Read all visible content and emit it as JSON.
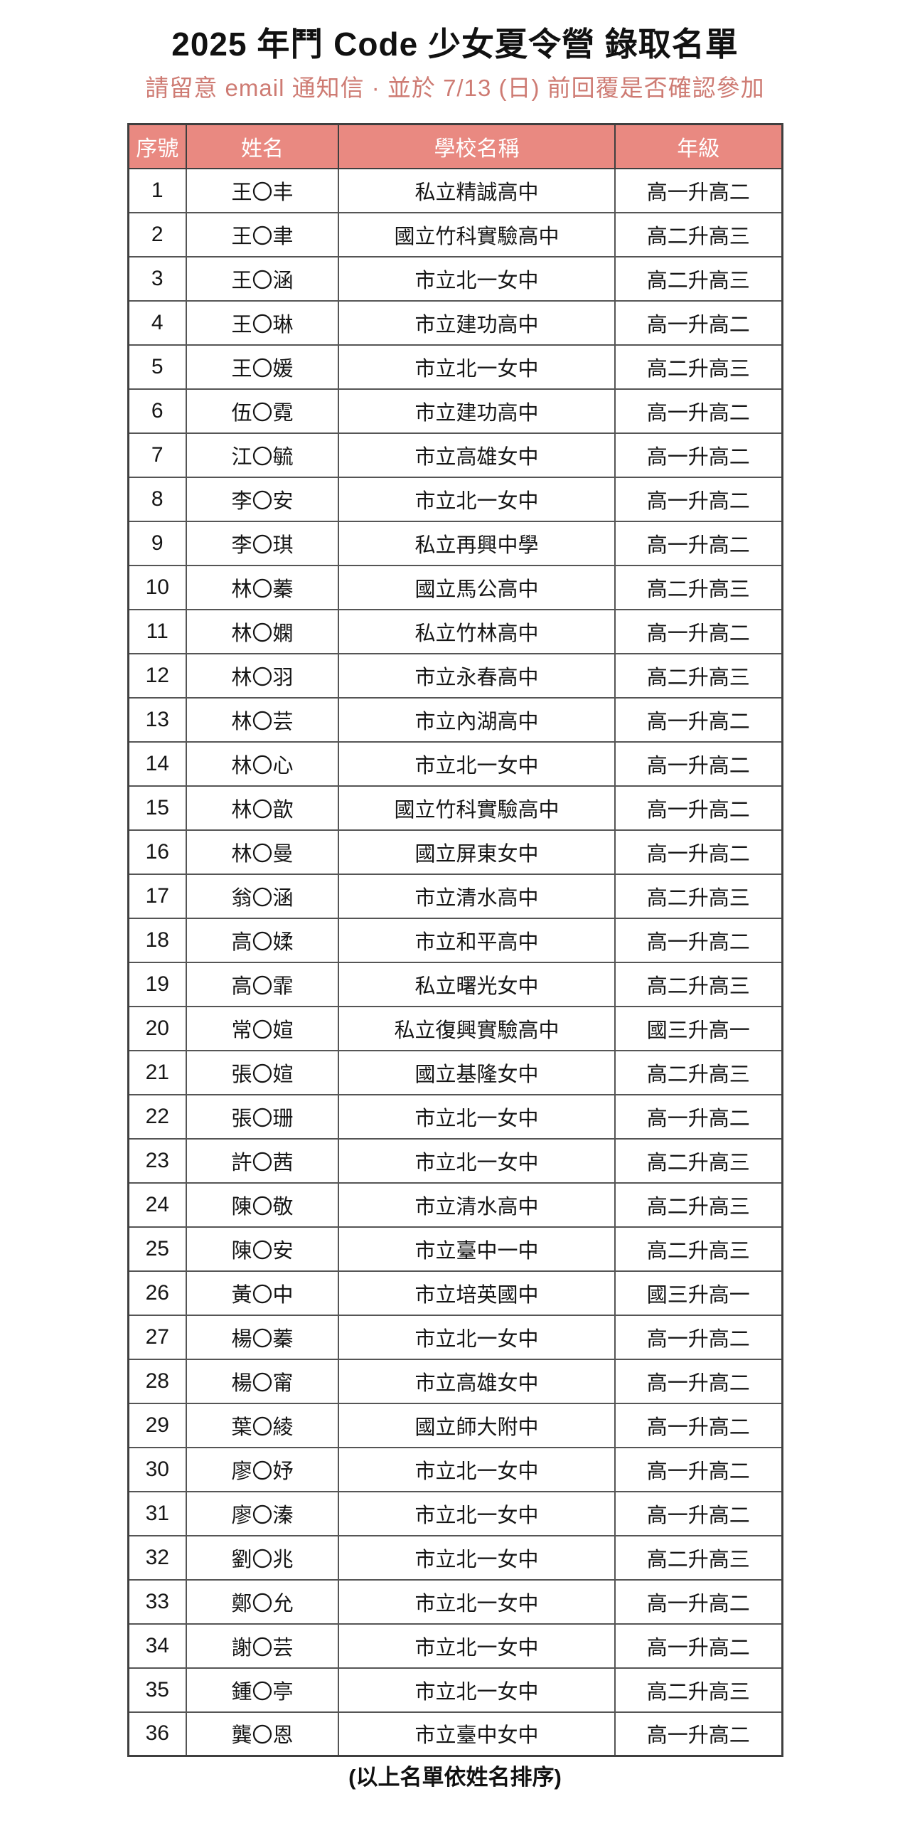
{
  "page": {
    "title": "2025 年鬥 Code 少女夏令營 錄取名單",
    "subtitle": "請留意 email 通知信 · 並於 7/13 (日) 前回覆是否確認參加",
    "footer": "(以上名單依姓名排序)"
  },
  "colors": {
    "header_bg": "#E98981",
    "header_text": "#FFFFFF",
    "subtitle_text": "#CE7B73",
    "border_inner": "#555555",
    "border_outer": "#3F3F3F"
  },
  "table": {
    "columns": [
      "序號",
      "姓名",
      "學校名稱",
      "年級"
    ],
    "rows": [
      {
        "no": "1",
        "name": "王〇丰",
        "school": "私立精誠高中",
        "grade": "高一升高二"
      },
      {
        "no": "2",
        "name": "王〇聿",
        "school": "國立竹科實驗高中",
        "grade": "高二升高三"
      },
      {
        "no": "3",
        "name": "王〇涵",
        "school": "市立北一女中",
        "grade": "高二升高三"
      },
      {
        "no": "4",
        "name": "王〇琳",
        "school": "市立建功高中",
        "grade": "高一升高二"
      },
      {
        "no": "5",
        "name": "王〇媛",
        "school": "市立北一女中",
        "grade": "高二升高三"
      },
      {
        "no": "6",
        "name": "伍〇霓",
        "school": "市立建功高中",
        "grade": "高一升高二"
      },
      {
        "no": "7",
        "name": "江〇毓",
        "school": "市立高雄女中",
        "grade": "高一升高二"
      },
      {
        "no": "8",
        "name": "李〇安",
        "school": "市立北一女中",
        "grade": "高一升高二"
      },
      {
        "no": "9",
        "name": "李〇琪",
        "school": "私立再興中學",
        "grade": "高一升高二"
      },
      {
        "no": "10",
        "name": "林〇蓁",
        "school": "國立馬公高中",
        "grade": "高二升高三"
      },
      {
        "no": "11",
        "name": "林〇嫻",
        "school": "私立竹林高中",
        "grade": "高一升高二"
      },
      {
        "no": "12",
        "name": "林〇羽",
        "school": "市立永春高中",
        "grade": "高二升高三"
      },
      {
        "no": "13",
        "name": "林〇芸",
        "school": "市立內湖高中",
        "grade": "高一升高二"
      },
      {
        "no": "14",
        "name": "林〇心",
        "school": "市立北一女中",
        "grade": "高一升高二"
      },
      {
        "no": "15",
        "name": "林〇歆",
        "school": "國立竹科實驗高中",
        "grade": "高一升高二"
      },
      {
        "no": "16",
        "name": "林〇曼",
        "school": "國立屏東女中",
        "grade": "高一升高二"
      },
      {
        "no": "17",
        "name": "翁〇涵",
        "school": "市立清水高中",
        "grade": "高二升高三"
      },
      {
        "no": "18",
        "name": "高〇媃",
        "school": "市立和平高中",
        "grade": "高一升高二"
      },
      {
        "no": "19",
        "name": "高〇霏",
        "school": "私立曙光女中",
        "grade": "高二升高三"
      },
      {
        "no": "20",
        "name": "常〇媗",
        "school": "私立復興實驗高中",
        "grade": "國三升高一"
      },
      {
        "no": "21",
        "name": "張〇媗",
        "school": "國立基隆女中",
        "grade": "高二升高三"
      },
      {
        "no": "22",
        "name": "張〇珊",
        "school": "市立北一女中",
        "grade": "高一升高二"
      },
      {
        "no": "23",
        "name": "許〇茜",
        "school": "市立北一女中",
        "grade": "高二升高三"
      },
      {
        "no": "24",
        "name": "陳〇敬",
        "school": "市立清水高中",
        "grade": "高二升高三"
      },
      {
        "no": "25",
        "name": "陳〇安",
        "school": "市立臺中一中",
        "grade": "高二升高三"
      },
      {
        "no": "26",
        "name": "黃〇中",
        "school": "市立培英國中",
        "grade": "國三升高一"
      },
      {
        "no": "27",
        "name": "楊〇蓁",
        "school": "市立北一女中",
        "grade": "高一升高二"
      },
      {
        "no": "28",
        "name": "楊〇甯",
        "school": "市立高雄女中",
        "grade": "高一升高二"
      },
      {
        "no": "29",
        "name": "葉〇綾",
        "school": "國立師大附中",
        "grade": "高一升高二"
      },
      {
        "no": "30",
        "name": "廖〇妤",
        "school": "市立北一女中",
        "grade": "高一升高二"
      },
      {
        "no": "31",
        "name": "廖〇溱",
        "school": "市立北一女中",
        "grade": "高一升高二"
      },
      {
        "no": "32",
        "name": "劉〇兆",
        "school": "市立北一女中",
        "grade": "高二升高三"
      },
      {
        "no": "33",
        "name": "鄭〇允",
        "school": "市立北一女中",
        "grade": "高一升高二"
      },
      {
        "no": "34",
        "name": "謝〇芸",
        "school": "市立北一女中",
        "grade": "高一升高二"
      },
      {
        "no": "35",
        "name": "鍾〇亭",
        "school": "市立北一女中",
        "grade": "高二升高三"
      },
      {
        "no": "36",
        "name": "龔〇恩",
        "school": "市立臺中女中",
        "grade": "高一升高二"
      }
    ]
  }
}
